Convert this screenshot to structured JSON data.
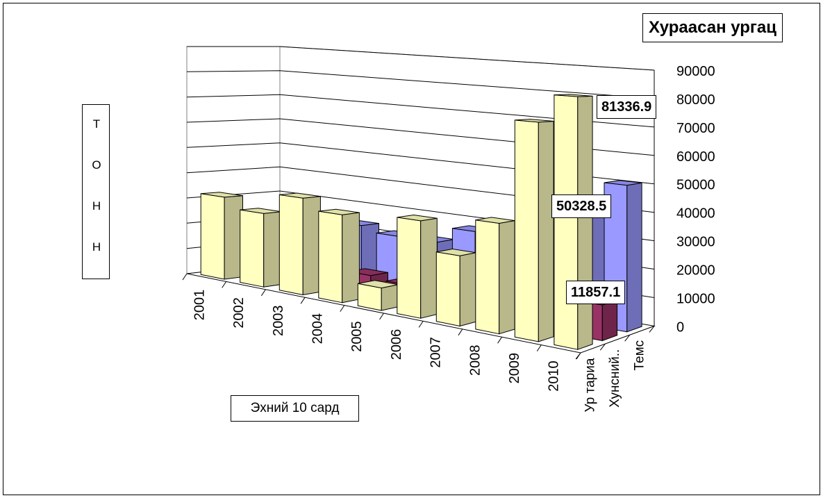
{
  "chart_data": {
    "type": "bar",
    "title": "Хураасан ургац",
    "ylabel": "Тонн",
    "xlabel": "Эхний 10 сард",
    "categories": [
      "2001",
      "2002",
      "2003",
      "2004",
      "2005",
      "2006",
      "2007",
      "2008",
      "2009",
      "2010"
    ],
    "depth_labels": [
      "Ур тариа",
      "Хунсний..",
      "Темс"
    ],
    "series": [
      {
        "name": "Ур тариа",
        "color": "#ffffc0",
        "values": [
          32000,
          28000,
          36000,
          32000,
          8000,
          34000,
          24000,
          37000,
          72000,
          81336.9
        ]
      },
      {
        "name": "Хунсний..",
        "color": "#993366",
        "values": [
          4000,
          8000,
          9000,
          8000,
          7000,
          5500,
          8000,
          9000,
          10000,
          11857.1
        ]
      },
      {
        "name": "Темс",
        "color": "#9999ff",
        "values": [
          22000,
          15000,
          23000,
          21000,
          21000,
          27000,
          28000,
          20000,
          42000,
          50328.5
        ]
      }
    ],
    "data_labels": [
      "81336.9",
      "11857.1",
      "50328.5"
    ],
    "yticks": [
      "0",
      "10000",
      "20000",
      "30000",
      "40000",
      "50000",
      "60000",
      "70000",
      "80000",
      "90000"
    ],
    "ylim": [
      0,
      90000
    ],
    "grid": true,
    "legend": "none"
  }
}
